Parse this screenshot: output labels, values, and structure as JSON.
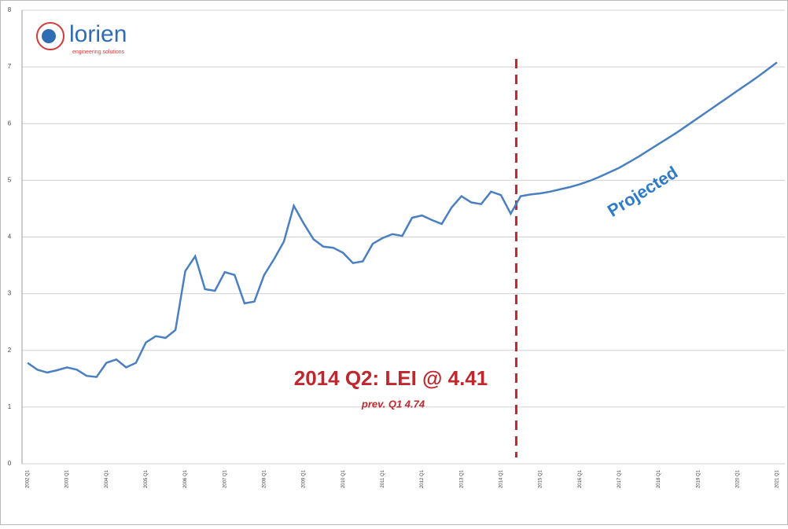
{
  "logo": {
    "name": "lorien",
    "tagline": "engineering solutions"
  },
  "chart_data": {
    "type": "line",
    "annotations": [
      "2014 Q2: LEI @ 4.41",
      "prev. Q1 4.74",
      "Projected"
    ],
    "categories": [
      "2002 Q1",
      null,
      null,
      null,
      "2003 Q1",
      null,
      null,
      null,
      "2004 Q1",
      null,
      null,
      null,
      "2005 Q1",
      null,
      null,
      null,
      "2006 Q1",
      null,
      null,
      null,
      "2007 Q1",
      null,
      null,
      null,
      "2008 Q1",
      null,
      null,
      null,
      "2009 Q1",
      null,
      null,
      null,
      "2010 Q1",
      null,
      null,
      null,
      "2011 Q1",
      null,
      null,
      null,
      "2012 Q1",
      null,
      null,
      null,
      "2013 Q1",
      null,
      null,
      null,
      "2014 Q1",
      null,
      null,
      null,
      "2015 Q1",
      null,
      null,
      null,
      "2016 Q1",
      null,
      null,
      null,
      "2017 Q1",
      null,
      null,
      null,
      "2018 Q1",
      null,
      null,
      null,
      "2019 Q1",
      null,
      null,
      null,
      "2020 Q1",
      null,
      null,
      null,
      "2021 Q1"
    ],
    "series": [
      {
        "color": "#4a7fc1",
        "values": [
          1.78,
          1.66,
          1.61,
          1.65,
          1.7,
          1.66,
          1.55,
          1.53,
          1.78,
          1.84,
          1.7,
          1.78,
          2.14,
          2.25,
          2.22,
          2.36,
          3.4,
          3.66,
          3.08,
          3.05,
          3.38,
          3.33,
          2.83,
          2.86,
          3.33,
          3.61,
          3.92,
          4.55,
          4.24,
          3.96,
          3.83,
          3.81,
          3.72,
          3.54,
          3.57,
          3.88,
          3.98,
          4.05,
          4.02,
          4.34,
          4.38,
          4.3,
          4.23,
          4.52,
          4.72,
          4.61,
          4.58,
          4.8,
          4.74,
          4.41,
          4.72,
          4.75,
          4.77,
          4.8,
          4.84,
          4.88,
          4.93,
          4.99,
          5.06,
          5.14,
          5.22,
          5.32,
          5.42,
          5.53,
          5.64,
          5.75,
          5.86,
          5.98,
          6.1,
          6.22,
          6.34,
          6.46,
          6.58,
          6.7,
          6.82,
          6.95,
          7.08
        ]
      }
    ],
    "ylim": [
      0,
      8
    ],
    "yticks": [
      0,
      1,
      2,
      3,
      4,
      5,
      6,
      7,
      8
    ],
    "grid": true
  }
}
